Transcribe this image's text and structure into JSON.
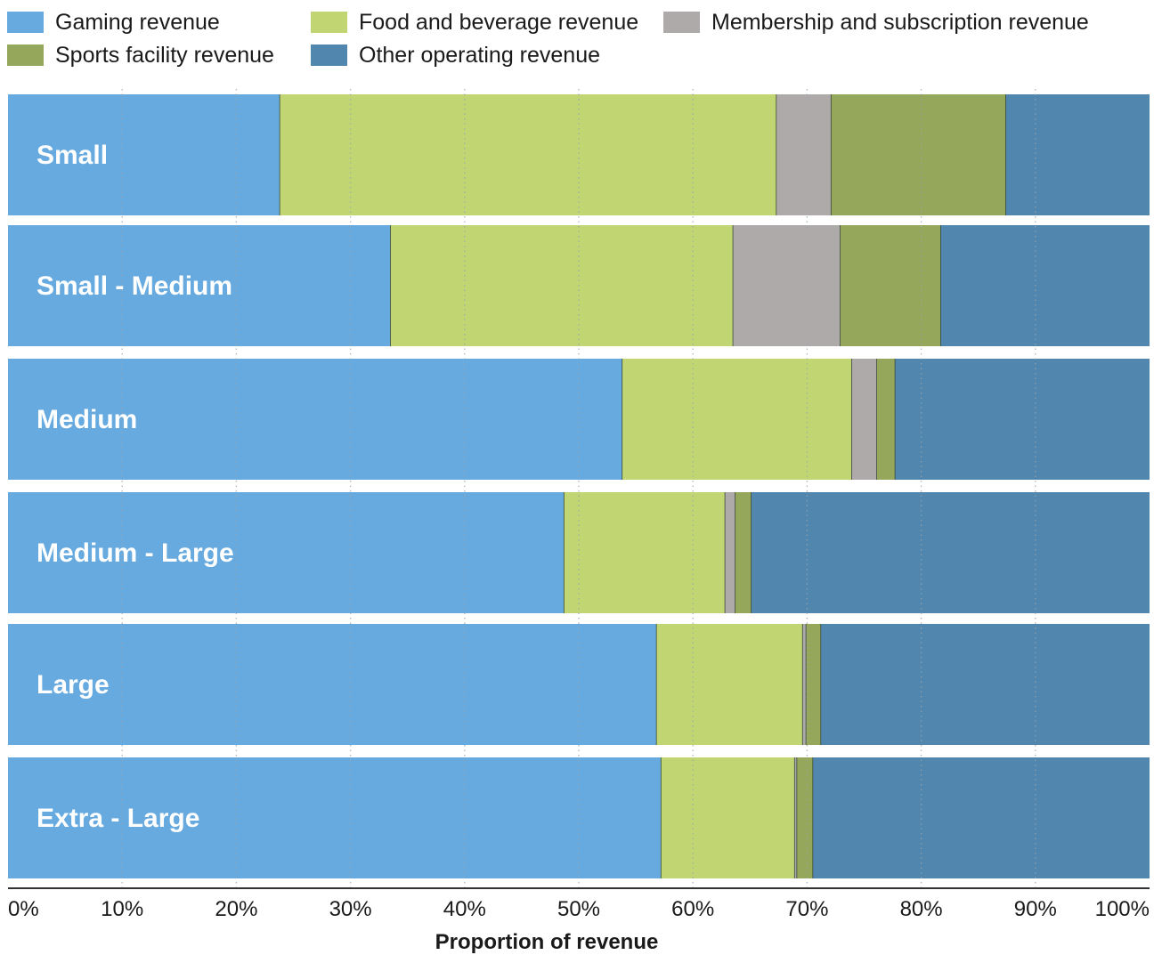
{
  "chart_data": {
    "type": "bar",
    "orientation": "horizontal",
    "stacked": true,
    "title": "",
    "xlabel": "Proportion of revenue",
    "ylabel": "",
    "xlim": [
      0,
      100
    ],
    "x_ticks": [
      "0%",
      "10%",
      "20%",
      "30%",
      "40%",
      "50%",
      "60%",
      "70%",
      "80%",
      "90%",
      "100%"
    ],
    "grid": "vertical dotted",
    "legend_position": "top",
    "categories": [
      "Small",
      "Small - Medium",
      "Medium",
      "Medium - Large",
      "Large",
      "Extra - Large"
    ],
    "series": [
      {
        "name": "Gaming revenue",
        "color": "#67aadf",
        "values": [
          23.8,
          33.5,
          53.8,
          48.7,
          56.8,
          57.2
        ]
      },
      {
        "name": "Food and beverage revenue",
        "color": "#c1d672",
        "values": [
          43.5,
          30.0,
          20.1,
          14.1,
          12.8,
          11.7
        ]
      },
      {
        "name": "Membership and subscription revenue",
        "color": "#aeaaaa",
        "values": [
          4.8,
          9.4,
          2.2,
          0.9,
          0.3,
          0.2
        ]
      },
      {
        "name": "Sports facility revenue",
        "color": "#94a75a",
        "values": [
          15.3,
          8.8,
          1.6,
          1.4,
          1.3,
          1.4
        ]
      },
      {
        "name": "Other operating revenue",
        "color": "#5186ae",
        "values": [
          12.6,
          18.3,
          22.3,
          34.9,
          28.8,
          29.5
        ]
      }
    ]
  }
}
